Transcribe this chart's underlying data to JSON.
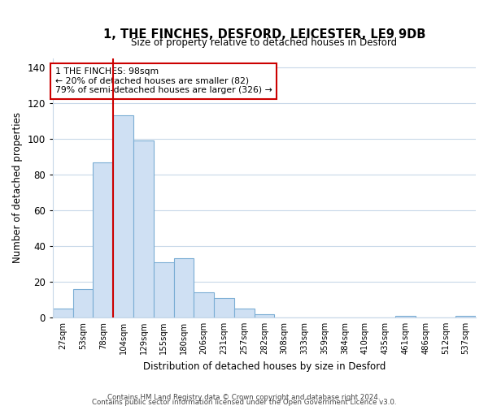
{
  "title": "1, THE FINCHES, DESFORD, LEICESTER, LE9 9DB",
  "subtitle": "Size of property relative to detached houses in Desford",
  "xlabel": "Distribution of detached houses by size in Desford",
  "ylabel": "Number of detached properties",
  "bar_labels": [
    "27sqm",
    "53sqm",
    "78sqm",
    "104sqm",
    "129sqm",
    "155sqm",
    "180sqm",
    "206sqm",
    "231sqm",
    "257sqm",
    "282sqm",
    "308sqm",
    "333sqm",
    "359sqm",
    "384sqm",
    "410sqm",
    "435sqm",
    "461sqm",
    "486sqm",
    "512sqm",
    "537sqm"
  ],
  "bar_values": [
    5,
    16,
    87,
    113,
    99,
    31,
    33,
    14,
    11,
    5,
    2,
    0,
    0,
    0,
    0,
    0,
    0,
    1,
    0,
    0,
    1
  ],
  "bar_color": "#cfe0f3",
  "bar_edge_color": "#7aadd4",
  "vline_x_index": 3,
  "vline_color": "#cc0000",
  "ylim": [
    0,
    145
  ],
  "yticks": [
    0,
    20,
    40,
    60,
    80,
    100,
    120,
    140
  ],
  "annotation_title": "1 THE FINCHES: 98sqm",
  "annotation_line1": "← 20% of detached houses are smaller (82)",
  "annotation_line2": "79% of semi-detached houses are larger (326) →",
  "footer1": "Contains HM Land Registry data © Crown copyright and database right 2024.",
  "footer2": "Contains public sector information licensed under the Open Government Licence v3.0.",
  "background_color": "#ffffff",
  "grid_color": "#c8d8e8"
}
